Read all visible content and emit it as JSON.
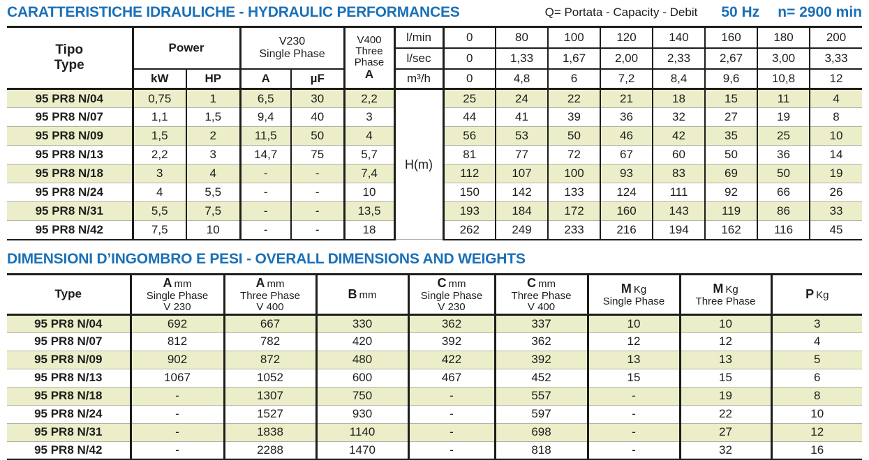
{
  "titles": {
    "hydraulic": "CARATTERISTICHE IDRAULICHE - HYDRAULIC PERFORMANCES",
    "capacity_note": "Q= Portata - Capacity - Debit",
    "frequency": "50 Hz",
    "speed": "n= 2900 min",
    "dimensions": "DIMENSIONI D’INGOMBRO E PESI - OVERALL DIMENSIONS AND WEIGHTS"
  },
  "colors": {
    "accent_blue": "#1a70b7",
    "stripe_green": "#ebeec9",
    "grid_black": "#1d1d1b",
    "row_separator_gray": "#b1b4a3"
  },
  "hydraulic_table": {
    "header": {
      "tipo": "Tipo",
      "type": "Type",
      "power": "Power",
      "kw": "kW",
      "hp": "HP",
      "v230_line1": "V230",
      "v230_line2": "Single Phase",
      "a": "A",
      "uf": "µF",
      "v400_line1": "V400",
      "v400_line2": "Three",
      "v400_line3": "Phase",
      "v400_a": "A",
      "hm": "H(m)"
    },
    "flow": [
      {
        "unit": "l/min",
        "values": [
          "0",
          "80",
          "100",
          "120",
          "140",
          "160",
          "180",
          "200"
        ]
      },
      {
        "unit": "l/sec",
        "values": [
          "0",
          "1,33",
          "1,67",
          "2,00",
          "2,33",
          "2,67",
          "3,00",
          "3,33"
        ]
      },
      {
        "unit": "m³/h",
        "values": [
          "0",
          "4,8",
          "6",
          "7,2",
          "8,4",
          "9,6",
          "10,8",
          "12"
        ]
      }
    ],
    "rows": [
      {
        "type": "95 PR8 N/04",
        "motor": [
          "0,75",
          "1",
          "6,5",
          "30",
          "2,2"
        ],
        "h": [
          "25",
          "24",
          "22",
          "21",
          "18",
          "15",
          "11",
          "4"
        ]
      },
      {
        "type": "95 PR8 N/07",
        "motor": [
          "1,1",
          "1,5",
          "9,4",
          "40",
          "3"
        ],
        "h": [
          "44",
          "41",
          "39",
          "36",
          "32",
          "27",
          "19",
          "8"
        ]
      },
      {
        "type": "95 PR8 N/09",
        "motor": [
          "1,5",
          "2",
          "11,5",
          "50",
          "4"
        ],
        "h": [
          "56",
          "53",
          "50",
          "46",
          "42",
          "35",
          "25",
          "10"
        ]
      },
      {
        "type": "95 PR8 N/13",
        "motor": [
          "2,2",
          "3",
          "14,7",
          "75",
          "5,7"
        ],
        "h": [
          "81",
          "77",
          "72",
          "67",
          "60",
          "50",
          "36",
          "14"
        ]
      },
      {
        "type": "95 PR8 N/18",
        "motor": [
          "3",
          "4",
          "-",
          "-",
          "7,4"
        ],
        "h": [
          "112",
          "107",
          "100",
          "93",
          "83",
          "69",
          "50",
          "19"
        ]
      },
      {
        "type": "95 PR8 N/24",
        "motor": [
          "4",
          "5,5",
          "-",
          "-",
          "10"
        ],
        "h": [
          "150",
          "142",
          "133",
          "124",
          "111",
          "92",
          "66",
          "26"
        ]
      },
      {
        "type": "95 PR8 N/31",
        "motor": [
          "5,5",
          "7,5",
          "-",
          "-",
          "13,5"
        ],
        "h": [
          "193",
          "184",
          "172",
          "160",
          "143",
          "119",
          "86",
          "33"
        ]
      },
      {
        "type": "95 PR8 N/42",
        "motor": [
          "7,5",
          "10",
          "-",
          "-",
          "18"
        ],
        "h": [
          "262",
          "249",
          "233",
          "216",
          "194",
          "162",
          "116",
          "45"
        ]
      }
    ]
  },
  "dimensions_table": {
    "header": {
      "type": "Type",
      "cols": [
        {
          "letter": "A",
          "unit": "mm",
          "line2": "Single Phase",
          "line3": "V 230"
        },
        {
          "letter": "A",
          "unit": "mm",
          "line2": "Three Phase",
          "line3": "V 400"
        },
        {
          "letter": "B",
          "unit": "mm"
        },
        {
          "letter": "C",
          "unit": "mm",
          "line2": "Single Phase",
          "line3": "V 230"
        },
        {
          "letter": "C",
          "unit": "mm",
          "line2": "Three Phase",
          "line3": "V 400"
        },
        {
          "letter": "M",
          "unit": "Kg",
          "line2": "Single Phase"
        },
        {
          "letter": "M",
          "unit": "Kg",
          "line2": "Three Phase"
        },
        {
          "letter": "P",
          "unit": "Kg"
        }
      ]
    },
    "rows": [
      {
        "type": "95 PR8 N/04",
        "values": [
          "692",
          "667",
          "330",
          "362",
          "337",
          "10",
          "10",
          "3"
        ]
      },
      {
        "type": "95 PR8 N/07",
        "values": [
          "812",
          "782",
          "420",
          "392",
          "362",
          "12",
          "12",
          "4"
        ]
      },
      {
        "type": "95 PR8 N/09",
        "values": [
          "902",
          "872",
          "480",
          "422",
          "392",
          "13",
          "13",
          "5"
        ]
      },
      {
        "type": "95 PR8 N/13",
        "values": [
          "1067",
          "1052",
          "600",
          "467",
          "452",
          "15",
          "15",
          "6"
        ]
      },
      {
        "type": "95 PR8 N/18",
        "values": [
          "-",
          "1307",
          "750",
          "-",
          "557",
          "-",
          "19",
          "8"
        ]
      },
      {
        "type": "95 PR8 N/24",
        "values": [
          "-",
          "1527",
          "930",
          "-",
          "597",
          "-",
          "22",
          "10"
        ]
      },
      {
        "type": "95 PR8 N/31",
        "values": [
          "-",
          "1838",
          "1140",
          "-",
          "698",
          "-",
          "27",
          "12"
        ]
      },
      {
        "type": "95 PR8 N/42",
        "values": [
          "-",
          "2288",
          "1470",
          "-",
          "818",
          "-",
          "32",
          "16"
        ]
      }
    ]
  }
}
